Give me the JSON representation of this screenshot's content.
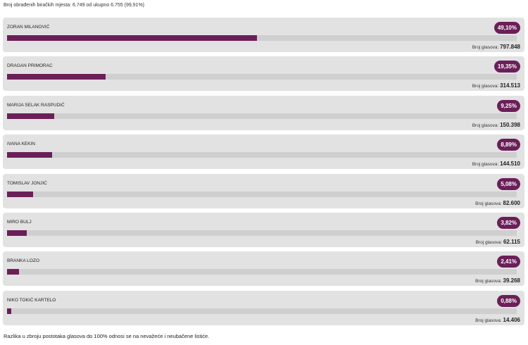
{
  "header": {
    "processed_text": "Broj obrađenih biračkih mjesta: 6.749 od ukupno 6.755 (99,91%)"
  },
  "candidates": [
    {
      "name": "ZORAN MILANOVIĆ",
      "percent_label": "49,10%",
      "percent": 49.1,
      "votes_label": "Broj glasova:",
      "votes": "797.848"
    },
    {
      "name": "DRAGAN PRIMORAC",
      "percent_label": "19,35%",
      "percent": 19.35,
      "votes_label": "Broj glasova:",
      "votes": "314.513"
    },
    {
      "name": "MARIJA SELAK RASPUDIĆ",
      "percent_label": "9,25%",
      "percent": 9.25,
      "votes_label": "Broj glasova:",
      "votes": "150.398"
    },
    {
      "name": "IVANA KEKIN",
      "percent_label": "8,89%",
      "percent": 8.89,
      "votes_label": "Broj glasova:",
      "votes": "144.510"
    },
    {
      "name": "TOMISLAV JONJIĆ",
      "percent_label": "5,08%",
      "percent": 5.08,
      "votes_label": "Broj glasova:",
      "votes": "82.600"
    },
    {
      "name": "MIRO BULJ",
      "percent_label": "3,82%",
      "percent": 3.82,
      "votes_label": "Broj glasova:",
      "votes": "62.115"
    },
    {
      "name": "BRANKA LOZO",
      "percent_label": "2,41%",
      "percent": 2.41,
      "votes_label": "Broj glasova:",
      "votes": "39.268"
    },
    {
      "name": "NIKO TOKIĆ KARTELO",
      "percent_label": "0,88%",
      "percent": 0.88,
      "votes_label": "Broj glasova:",
      "votes": "14.406"
    }
  ],
  "footer": {
    "note": "Razlika u zbroju postotaka glasova do 100% odnosi se na nevažeće i neubačene listiće."
  },
  "colors": {
    "accent": "#6b1f59",
    "card_bg": "#e2e2e2",
    "track_bg": "#cfcfcf"
  }
}
